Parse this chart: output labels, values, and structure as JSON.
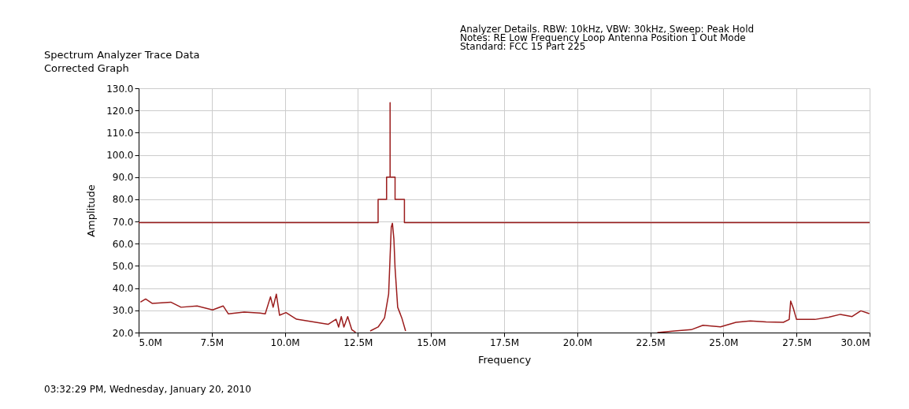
{
  "chart_data": {
    "type": "line",
    "title": "Spectrum Analyzer Trace Data",
    "subtitle": "Corrected Graph",
    "xlabel": "Frequency",
    "ylabel": "Amplitude",
    "annotations": [
      "Analyzer Details.  RBW: 10kHz, VBW: 30kHz, Sweep: Peak Hold",
      "Notes:  RE Low Frequency Loop Antenna Position 1  Out Mode",
      "Standard: FCC 15 Part 225",
      "03:32:29 PM, Wednesday, January 20, 2010"
    ],
    "xlim": [
      5,
      30
    ],
    "xticks": [
      {
        "value": 5,
        "label": "5.0M"
      },
      {
        "value": 7.5,
        "label": "7.5M"
      },
      {
        "value": 10,
        "label": "10.0M"
      },
      {
        "value": 12.5,
        "label": "12.5M"
      },
      {
        "value": 15,
        "label": "15.0M"
      },
      {
        "value": 17.5,
        "label": "17.5M"
      },
      {
        "value": 20,
        "label": "20.0M"
      },
      {
        "value": 22.5,
        "label": "22.5M"
      },
      {
        "value": 25,
        "label": "25.0M"
      },
      {
        "value": 27.5,
        "label": "27.5M"
      },
      {
        "value": 30,
        "label": "30.0M"
      }
    ],
    "ylim": [
      20,
      130
    ],
    "yticks": [
      {
        "value": 20,
        "label": "20.0"
      },
      {
        "value": 30,
        "label": "30.0"
      },
      {
        "value": 40,
        "label": "40.0"
      },
      {
        "value": 50,
        "label": "50.0"
      },
      {
        "value": 60,
        "label": "60.0"
      },
      {
        "value": 70,
        "label": "70.0"
      },
      {
        "value": 80,
        "label": "80.0"
      },
      {
        "value": 90,
        "label": "90.0"
      },
      {
        "value": 100,
        "label": "100.0"
      },
      {
        "value": 110,
        "label": "110.0"
      },
      {
        "value": 120,
        "label": "120.0"
      },
      {
        "value": 130,
        "label": "130.0"
      }
    ],
    "grid": true,
    "legend": false,
    "series": [
      {
        "type": "step",
        "color": "#9b1c1c",
        "x": [
          5,
          13.19,
          13.48,
          13.6,
          13.6,
          13.77,
          14.09,
          30
        ],
        "values": [
          69.5,
          80,
          90,
          123.5,
          90,
          80,
          69.5,
          69.5
        ]
      },
      {
        "type": "line",
        "color": "#9b1c1c",
        "x": [
          5.06,
          5.24,
          5.47,
          6.1,
          6.45,
          7.0,
          7.53,
          7.89,
          8.07,
          8.61,
          9.15,
          9.33,
          9.51,
          9.6,
          9.71,
          9.82,
          10.04,
          10.4,
          10.94,
          11.48,
          11.75,
          11.84,
          11.93,
          12.02,
          12.15,
          12.29,
          12.42,
          12.7,
          12.92,
          13.19,
          13.41,
          13.55,
          13.64,
          13.68,
          13.73,
          13.77,
          13.86,
          14.0,
          14.13,
          18.5,
          22.74,
          23.33,
          23.9,
          24.3,
          24.9,
          25.43,
          25.92,
          26.46,
          27.05,
          27.25,
          27.3,
          27.39,
          27.5,
          28.13,
          28.6,
          29.0,
          29.4,
          29.7,
          29.99
        ],
        "values": [
          33.7,
          35.1,
          33.1,
          33.7,
          31.4,
          32.0,
          30.2,
          32.0,
          28.4,
          29.2,
          28.8,
          28.4,
          36.1,
          31.4,
          37.3,
          27.8,
          29.0,
          26.0,
          24.9,
          23.7,
          26.0,
          22.5,
          27.2,
          22.5,
          27.2,
          21.3,
          20.1,
          null,
          20.7,
          22.5,
          26.6,
          37.3,
          67.5,
          69.2,
          62.1,
          49.1,
          31.4,
          26.6,
          20.7,
          null,
          20.0,
          20.7,
          21.3,
          23.3,
          22.6,
          24.6,
          25.2,
          24.8,
          24.6,
          25.9,
          34.2,
          31.0,
          25.9,
          25.9,
          26.9,
          28.2,
          27.2,
          29.8,
          28.5
        ]
      }
    ]
  }
}
